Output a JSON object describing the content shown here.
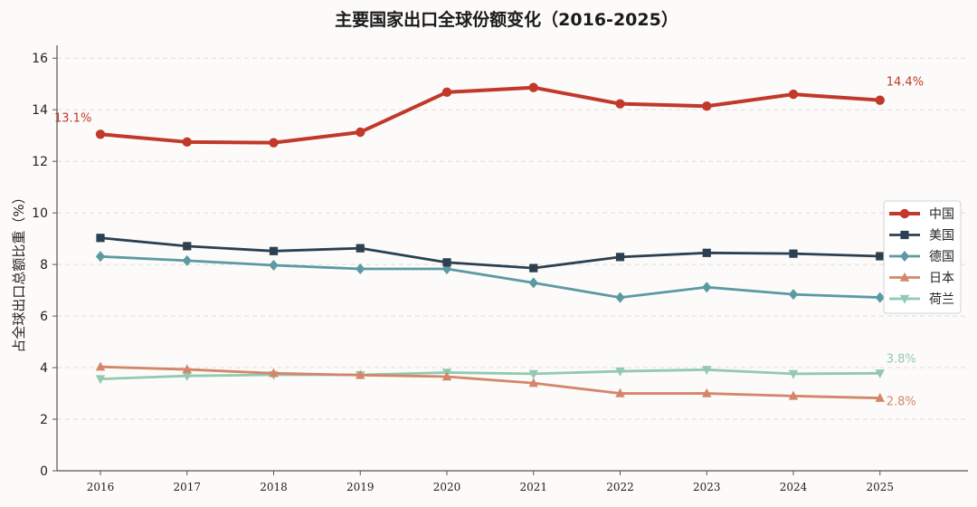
{
  "chart_data": {
    "type": "line",
    "title": "主要国家出口全球份额变化（2016-2025）",
    "xlabel": "",
    "ylabel": "占全球出口总额比重（%）",
    "x": [
      "2016",
      "2017",
      "2018",
      "2019",
      "2020",
      "2021",
      "2022",
      "2023",
      "2024",
      "2025"
    ],
    "ylim": [
      0,
      16.5
    ],
    "yticks": [
      "0",
      "2",
      "4",
      "6",
      "8",
      "10",
      "12",
      "14",
      "16"
    ],
    "grid": "horizontal dashed",
    "legend_position": "right",
    "series": [
      {
        "name": "中国",
        "color": "#c0392b",
        "marker": "circle",
        "values": [
          13.05,
          12.75,
          12.72,
          13.13,
          14.68,
          14.86,
          14.23,
          14.14,
          14.6,
          14.37
        ]
      },
      {
        "name": "美国",
        "color": "#2c4051",
        "marker": "square",
        "values": [
          9.03,
          8.71,
          8.52,
          8.63,
          8.08,
          7.86,
          8.29,
          8.45,
          8.42,
          8.32
        ]
      },
      {
        "name": "德国",
        "color": "#5b9aa3",
        "marker": "diamond",
        "values": [
          8.31,
          8.15,
          7.97,
          7.83,
          7.83,
          7.29,
          6.72,
          7.12,
          6.84,
          6.72
        ]
      },
      {
        "name": "日本",
        "color": "#d4866a",
        "marker": "triangle-up",
        "values": [
          4.03,
          3.93,
          3.78,
          3.71,
          3.65,
          3.4,
          3.0,
          3.0,
          2.9,
          2.82
        ]
      },
      {
        "name": "荷兰",
        "color": "#92c9b2",
        "marker": "triangle-down",
        "values": [
          3.56,
          3.68,
          3.72,
          3.72,
          3.81,
          3.76,
          3.86,
          3.92,
          3.76,
          3.78
        ]
      }
    ],
    "annotations": [
      {
        "text": "13.1%",
        "series": "中国",
        "x": "2016",
        "color": "#c0392b"
      },
      {
        "text": "14.4%",
        "series": "中国",
        "x": "2025",
        "color": "#c0392b"
      },
      {
        "text": "3.8%",
        "series": "荷兰",
        "x": "2025",
        "color": "#92c9b2"
      },
      {
        "text": "2.8%",
        "series": "日本",
        "x": "2025",
        "color": "#d4866a"
      }
    ]
  }
}
